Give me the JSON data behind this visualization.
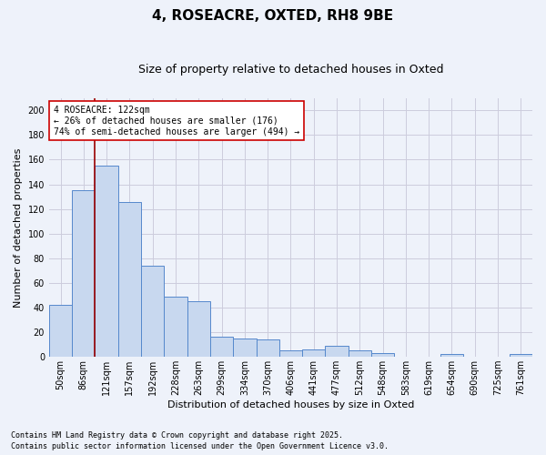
{
  "title1": "4, ROSEACRE, OXTED, RH8 9BE",
  "title2": "Size of property relative to detached houses in Oxted",
  "xlabel": "Distribution of detached houses by size in Oxted",
  "ylabel": "Number of detached properties",
  "categories": [
    "50sqm",
    "86sqm",
    "121sqm",
    "157sqm",
    "192sqm",
    "228sqm",
    "263sqm",
    "299sqm",
    "334sqm",
    "370sqm",
    "406sqm",
    "441sqm",
    "477sqm",
    "512sqm",
    "548sqm",
    "583sqm",
    "619sqm",
    "654sqm",
    "690sqm",
    "725sqm",
    "761sqm"
  ],
  "values": [
    42,
    135,
    155,
    126,
    74,
    49,
    45,
    16,
    15,
    14,
    5,
    6,
    9,
    5,
    3,
    0,
    0,
    2,
    0,
    0,
    2
  ],
  "bar_color": "#c8d8ef",
  "bar_edge_color": "#5588cc",
  "grid_color": "#ccccdd",
  "vline_x_index": 2,
  "vline_color": "#990000",
  "annotation_text": "4 ROSEACRE: 122sqm\n← 26% of detached houses are smaller (176)\n74% of semi-detached houses are larger (494) →",
  "annotation_box_facecolor": "#ffffff",
  "annotation_box_edgecolor": "#cc0000",
  "footnote1": "Contains HM Land Registry data © Crown copyright and database right 2025.",
  "footnote2": "Contains public sector information licensed under the Open Government Licence v3.0.",
  "ylim": [
    0,
    210
  ],
  "yticks": [
    0,
    20,
    40,
    60,
    80,
    100,
    120,
    140,
    160,
    180,
    200
  ],
  "background_color": "#eef2fa",
  "plot_bg_color": "#eef2fa",
  "title1_fontsize": 11,
  "title2_fontsize": 9,
  "xlabel_fontsize": 8,
  "ylabel_fontsize": 8,
  "tick_fontsize": 7,
  "annot_fontsize": 7,
  "footnote_fontsize": 6
}
